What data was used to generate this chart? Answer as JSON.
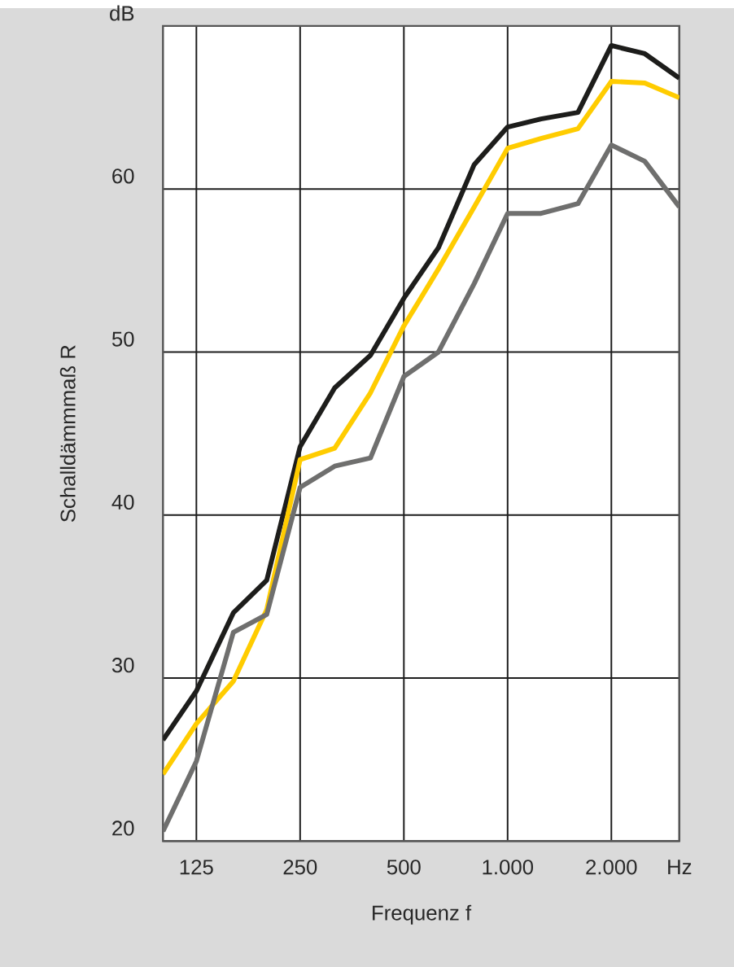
{
  "chart_data": {
    "type": "line",
    "xlabel": "Frequenz f",
    "ylabel": "Schalldämmmaß R",
    "x": [
      100,
      125,
      160,
      200,
      250,
      315,
      400,
      500,
      630,
      800,
      1000,
      1250,
      1600,
      2000,
      2500,
      3150
    ],
    "series": [
      {
        "color": "#1d1d1b",
        "values": [
          26.2,
          29.2,
          34,
          36,
          44.2,
          47.8,
          49.8,
          53.3,
          56.4,
          61.5,
          63.8,
          64.3,
          64.7,
          68.8,
          68.3,
          66.8
        ]
      },
      {
        "color": "#ffcc00",
        "values": [
          24.1,
          27.2,
          29.8,
          34.2,
          43.4,
          44.1,
          47.5,
          51.6,
          55.1,
          58.9,
          62.5,
          63.1,
          63.7,
          66.6,
          66.5,
          65.6
        ]
      },
      {
        "color": "#6f6f6e",
        "values": [
          20.6,
          24.9,
          32.8,
          33.9,
          41.7,
          43,
          43.5,
          48.5,
          50,
          54.2,
          58.5,
          58.5,
          59.1,
          62.7,
          61.7,
          58.9
        ]
      }
    ],
    "log": "x",
    "xlim": [
      100,
      3150
    ],
    "ylim": [
      20,
      70
    ],
    "xticks": [
      125,
      250,
      500,
      {
        "value": 1000,
        "label": "1.000"
      },
      {
        "value": 2000,
        "label": "2.000"
      },
      {
        "value": 3150,
        "label": "Hz"
      }
    ],
    "yticks": [
      20,
      30,
      40,
      50,
      60,
      {
        "value": 70,
        "label": "dB"
      }
    ],
    "grid": true,
    "line_style": "solid"
  }
}
